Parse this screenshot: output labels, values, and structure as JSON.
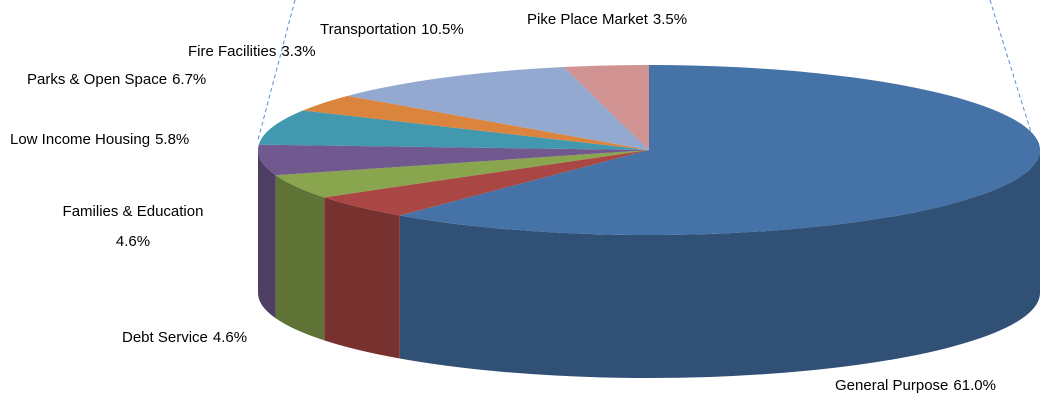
{
  "chart_data": {
    "type": "pie3d",
    "categories": [
      "General Purpose",
      "Debt Service",
      "Families & Education",
      "Low Income Housing",
      "Parks & Open Space",
      "Fire Facilities",
      "Transportation",
      "Pike Place Market"
    ],
    "values": [
      61.0,
      4.6,
      4.6,
      5.8,
      6.7,
      3.3,
      10.5,
      3.5
    ],
    "value_labels": [
      "61.0%",
      "4.6%",
      "4.6%",
      "5.8%",
      "6.7%",
      "3.3%",
      "10.5%",
      "3.5%"
    ],
    "colors": [
      "#4572a7",
      "#aa4643",
      "#89a54e",
      "#71588f",
      "#4198af",
      "#db843d",
      "#93a9cf",
      "#d19392"
    ]
  }
}
